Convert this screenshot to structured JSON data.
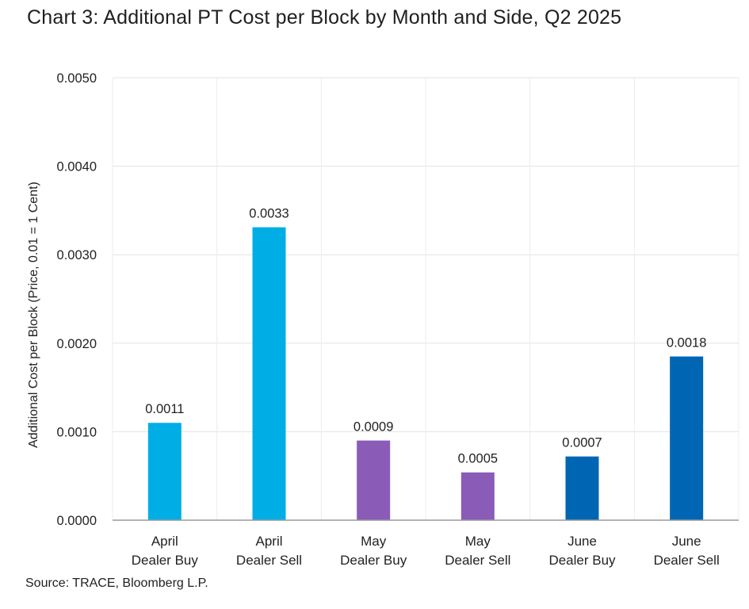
{
  "chart_data": {
    "type": "bar",
    "title": "Chart 3: Additional PT Cost per Block by Month and Side, Q2 2025",
    "ylabel": "Additional Cost per Block (Price, 0.01 = 1 Cent)",
    "xlabel": "",
    "ylim": [
      0,
      0.005
    ],
    "yticks": [
      "0.0000",
      "0.0010",
      "0.0020",
      "0.0030",
      "0.0040",
      "0.0050"
    ],
    "ytick_values": [
      0,
      0.001,
      0.002,
      0.003,
      0.004,
      0.005
    ],
    "categories": [
      {
        "line1": "April",
        "line2": "Dealer Buy"
      },
      {
        "line1": "April",
        "line2": "Dealer Sell"
      },
      {
        "line1": "May",
        "line2": "Dealer Buy"
      },
      {
        "line1": "May",
        "line2": "Dealer Sell"
      },
      {
        "line1": "June",
        "line2": "Dealer Buy"
      },
      {
        "line1": "June",
        "line2": "Dealer Sell"
      }
    ],
    "values": [
      0.0011,
      0.00331,
      0.0009,
      0.00054,
      0.00072,
      0.00185
    ],
    "data_labels": [
      "0.0011",
      "0.0033",
      "0.0009",
      "0.0005",
      "0.0007",
      "0.0018"
    ],
    "colors": [
      "#00AEE6",
      "#00AEE6",
      "#8A5CB8",
      "#8A5CB8",
      "#0066B3",
      "#0066B3"
    ],
    "grid": true
  },
  "source": "Source: TRACE, Bloomberg L.P."
}
